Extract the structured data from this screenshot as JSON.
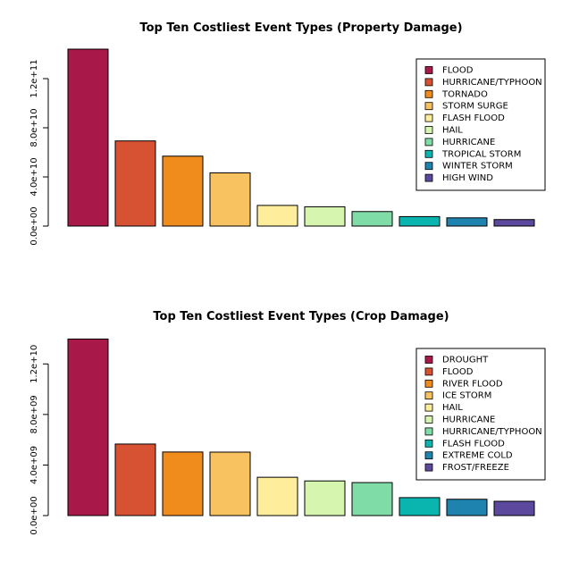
{
  "chart_data": [
    {
      "type": "bar",
      "title": "Top Ten Costliest Event Types (Property Damage)",
      "xlabel": "",
      "ylabel": "",
      "ylim": [
        0,
        144000000000
      ],
      "yticks": [
        0,
        40000000000,
        80000000000,
        120000000000
      ],
      "ytick_labels": [
        "0.0e+00",
        "4.0e+10",
        "8.0e+10",
        "1.2e+11"
      ],
      "categories": [
        "FLOOD",
        "HURRICANE/TYPHOON",
        "TORNADO",
        "STORM SURGE",
        "FLASH FLOOD",
        "HAIL",
        "HURRICANE",
        "TROPICAL STORM",
        "WINTER STORM",
        "HIGH WIND"
      ],
      "values": [
        144700000000,
        69300000000,
        56900000000,
        43300000000,
        16800000000,
        15700000000,
        11800000000,
        7700000000,
        6700000000,
        5300000000
      ],
      "colors": [
        "#A8194A",
        "#D75232",
        "#F08C1C",
        "#F9C260",
        "#FEEE9C",
        "#D6F5AF",
        "#80DCA6",
        "#09B5AE",
        "#1E83AE",
        "#5C489C"
      ],
      "legend": {
        "position": "top-right",
        "labels": [
          "FLOOD",
          "HURRICANE/TYPHOON",
          "TORNADO",
          "STORM SURGE",
          "FLASH FLOOD",
          "HAIL",
          "HURRICANE",
          "TROPICAL STORM",
          "WINTER STORM",
          "HIGH WIND"
        ]
      }
    },
    {
      "type": "bar",
      "title": "Top Ten Costliest Event Types (Crop Damage)",
      "xlabel": "",
      "ylabel": "",
      "ylim": [
        0,
        14000000000
      ],
      "yticks": [
        0,
        4000000000,
        8000000000,
        12000000000
      ],
      "ytick_labels": [
        "0.0e+00",
        "4.0e+09",
        "8.0e+09",
        "1.2e+10"
      ],
      "categories": [
        "DROUGHT",
        "FLOOD",
        "RIVER FLOOD",
        "ICE STORM",
        "HAIL",
        "HURRICANE",
        "HURRICANE/TYPHOON",
        "FLASH FLOOD",
        "EXTREME COLD",
        "FROST/FREEZE"
      ],
      "values": [
        13970000000,
        5660000000,
        5030000000,
        5020000000,
        3030000000,
        2740000000,
        2610000000,
        1420000000,
        1290000000,
        1130000000
      ],
      "colors": [
        "#A8194A",
        "#D75232",
        "#F08C1C",
        "#F9C260",
        "#FEEE9C",
        "#D6F5AF",
        "#80DCA6",
        "#09B5AE",
        "#1E83AE",
        "#5C489C"
      ],
      "legend": {
        "position": "top-right",
        "labels": [
          "DROUGHT",
          "FLOOD",
          "RIVER FLOOD",
          "ICE STORM",
          "HAIL",
          "HURRICANE",
          "HURRICANE/TYPHOON",
          "FLASH FLOOD",
          "EXTREME COLD",
          "FROST/FREEZE"
        ]
      }
    }
  ]
}
